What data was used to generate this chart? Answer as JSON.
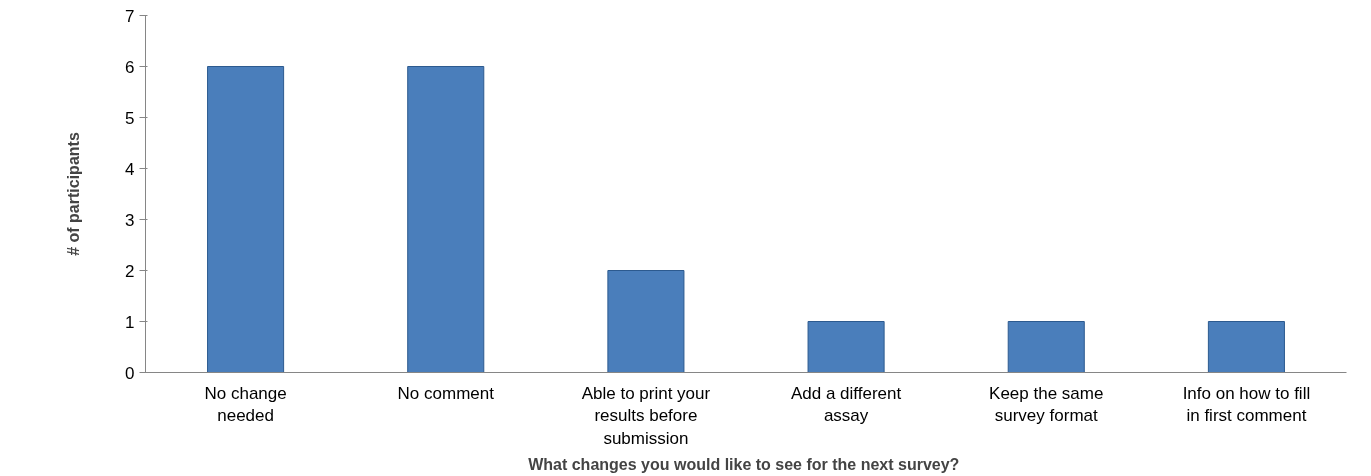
{
  "chart_data": {
    "type": "bar",
    "categories": [
      "No change\nneeded",
      "No comment",
      "Able to print your\nresults before\nsubmission",
      "Add a different\nassay",
      "Keep the same\nsurvey format",
      "Info on how to fill\nin first comment"
    ],
    "values": [
      6,
      6,
      2,
      1,
      1,
      1
    ],
    "color": "#4a7ebb",
    "xlabel": "What changes  you would like to see for the next survey?",
    "ylabel": "# of participants",
    "ylim": [
      0,
      7
    ],
    "yticks": [
      0,
      1,
      2,
      3,
      4,
      5,
      6,
      7
    ],
    "grid": false
  }
}
